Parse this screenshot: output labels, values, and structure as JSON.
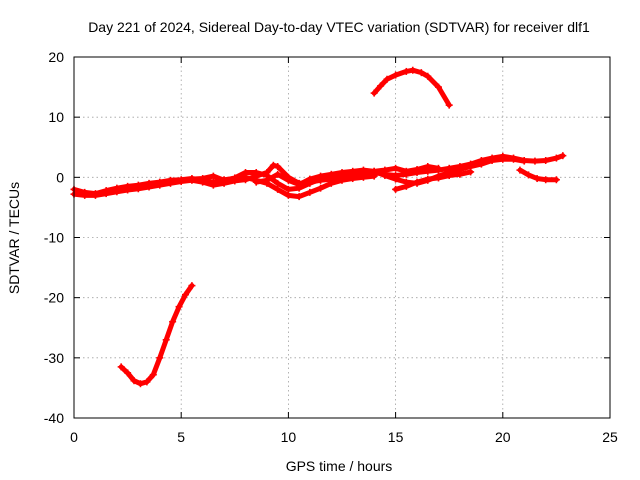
{
  "chart_data": {
    "type": "scatter",
    "title": "Day 221 of 2024, Sidereal Day-to-day VTEC variation (SDTVAR) for receiver dlf1",
    "xlabel": "GPS time / hours",
    "ylabel": "SDTVAR / TECUs",
    "xlim": [
      0,
      25
    ],
    "ylim": [
      -40,
      20
    ],
    "xticks": [
      0,
      5,
      10,
      15,
      20,
      25
    ],
    "xtick_labels": [
      "0",
      "5",
      "10",
      "15",
      "20",
      "25"
    ],
    "yticks": [
      -40,
      -30,
      -20,
      -10,
      0,
      10,
      20
    ],
    "ytick_labels": [
      "-40",
      "-30",
      "-20",
      "-10",
      "0",
      "10",
      "20"
    ],
    "grid": true,
    "legend": "none",
    "marker": "plus",
    "color": "#ff0000",
    "series": [
      {
        "name": "arc-a",
        "points": [
          [
            0.0,
            -2.0
          ],
          [
            0.5,
            -2.5
          ],
          [
            1.0,
            -2.7
          ],
          [
            1.5,
            -2.2
          ],
          [
            2.0,
            -1.8
          ],
          [
            2.5,
            -1.5
          ],
          [
            3.0,
            -1.3
          ],
          [
            3.5,
            -1.0
          ],
          [
            4.0,
            -0.8
          ],
          [
            4.5,
            -0.5
          ],
          [
            5.0,
            -0.4
          ],
          [
            5.5,
            -0.2
          ],
          [
            6.0,
            -0.5
          ],
          [
            6.5,
            -0.8
          ],
          [
            7.0,
            -0.4
          ],
          [
            7.5,
            -0.2
          ],
          [
            8.0,
            0.0
          ],
          [
            8.5,
            -0.5
          ],
          [
            9.0,
            -1.0
          ],
          [
            9.5,
            -2.0
          ],
          [
            10.0,
            -3.0
          ],
          [
            10.5,
            -3.2
          ],
          [
            11.0,
            -2.5
          ],
          [
            11.5,
            -1.8
          ],
          [
            12.0,
            -1.0
          ],
          [
            12.5,
            -0.5
          ],
          [
            13.0,
            -0.2
          ],
          [
            13.5,
            0.0
          ],
          [
            14.0,
            0.2
          ]
        ]
      },
      {
        "name": "arc-b",
        "points": [
          [
            0.0,
            -2.8
          ],
          [
            0.5,
            -3.0
          ],
          [
            1.0,
            -3.0
          ],
          [
            1.5,
            -2.7
          ],
          [
            2.0,
            -2.4
          ],
          [
            2.5,
            -2.1
          ],
          [
            3.0,
            -1.9
          ],
          [
            3.5,
            -1.6
          ],
          [
            4.0,
            -1.3
          ],
          [
            4.5,
            -1.0
          ],
          [
            5.0,
            -0.7
          ],
          [
            5.5,
            -0.5
          ],
          [
            6.0,
            -0.8
          ],
          [
            6.5,
            -1.3
          ],
          [
            7.0,
            -1.0
          ],
          [
            7.5,
            -0.6
          ],
          [
            8.0,
            -0.4
          ],
          [
            8.5,
            0.2
          ],
          [
            9.0,
            0.8
          ],
          [
            9.3,
            2.0
          ],
          [
            9.5,
            1.8
          ],
          [
            10.0,
            0.0
          ],
          [
            10.5,
            -1.0
          ],
          [
            11.0,
            -0.8
          ],
          [
            11.5,
            -0.5
          ],
          [
            12.0,
            -0.3
          ],
          [
            12.5,
            0.0
          ],
          [
            13.0,
            0.3
          ],
          [
            13.5,
            0.6
          ],
          [
            14.0,
            0.8
          ],
          [
            14.5,
            0.5
          ],
          [
            15.0,
            0.3
          ],
          [
            15.5,
            0.5
          ],
          [
            16.0,
            0.8
          ],
          [
            16.5,
            1.0
          ],
          [
            17.0,
            1.2
          ],
          [
            17.5,
            1.5
          ],
          [
            18.0,
            1.8
          ],
          [
            18.5,
            2.2
          ],
          [
            19.0,
            2.8
          ],
          [
            19.5,
            3.2
          ],
          [
            20.0,
            3.5
          ],
          [
            20.5,
            3.2
          ],
          [
            21.0,
            2.8
          ],
          [
            21.5,
            2.7
          ],
          [
            22.0,
            2.8
          ],
          [
            22.5,
            3.2
          ],
          [
            22.8,
            3.6
          ]
        ]
      },
      {
        "name": "arc-c",
        "points": [
          [
            5.5,
            -0.3
          ],
          [
            6.0,
            -0.2
          ],
          [
            6.5,
            0.2
          ],
          [
            7.0,
            -0.5
          ],
          [
            7.5,
            -0.1
          ],
          [
            8.0,
            0.8
          ],
          [
            8.5,
            0.8
          ],
          [
            9.0,
            0.3
          ],
          [
            9.5,
            -1.0
          ],
          [
            10.0,
            -2.0
          ],
          [
            10.5,
            -1.8
          ],
          [
            11.0,
            -1.0
          ],
          [
            11.5,
            -0.3
          ],
          [
            12.0,
            0.2
          ],
          [
            12.5,
            0.5
          ],
          [
            13.0,
            0.7
          ],
          [
            13.5,
            0.8
          ],
          [
            14.0,
            1.0
          ],
          [
            14.5,
            0.3
          ],
          [
            15.0,
            -0.3
          ],
          [
            15.5,
            -0.8
          ],
          [
            16.0,
            -1.0
          ],
          [
            16.5,
            -0.5
          ],
          [
            17.0,
            0.2
          ],
          [
            17.5,
            0.8
          ],
          [
            18.0,
            1.3
          ],
          [
            18.5,
            1.8
          ],
          [
            19.0,
            2.2
          ],
          [
            19.5,
            2.8
          ],
          [
            20.0,
            3.0
          ],
          [
            20.5,
            3.0
          ],
          [
            21.0,
            2.7
          ]
        ]
      },
      {
        "name": "arc-d",
        "points": [
          [
            8.5,
            -0.8
          ],
          [
            9.0,
            -0.5
          ],
          [
            9.5,
            0.5
          ],
          [
            10.0,
            -0.5
          ],
          [
            10.5,
            -1.2
          ],
          [
            11.0,
            -0.3
          ],
          [
            11.5,
            0.2
          ],
          [
            12.0,
            0.5
          ],
          [
            12.5,
            0.8
          ],
          [
            13.0,
            1.0
          ],
          [
            13.5,
            1.2
          ],
          [
            14.0,
            1.0
          ],
          [
            14.5,
            1.2
          ],
          [
            15.0,
            1.5
          ],
          [
            15.5,
            1.0
          ],
          [
            16.0,
            1.3
          ],
          [
            16.5,
            1.8
          ],
          [
            17.0,
            1.5
          ]
        ]
      },
      {
        "name": "arc-e",
        "points": [
          [
            15.0,
            -2.0
          ],
          [
            15.5,
            -1.5
          ],
          [
            16.0,
            -0.8
          ],
          [
            16.5,
            -0.3
          ],
          [
            17.0,
            -0.1
          ],
          [
            17.5,
            0.3
          ],
          [
            18.0,
            0.5
          ],
          [
            18.5,
            0.9
          ]
        ]
      },
      {
        "name": "arc-f",
        "points": [
          [
            20.8,
            1.2
          ],
          [
            21.2,
            0.4
          ],
          [
            21.6,
            -0.2
          ],
          [
            22.0,
            -0.4
          ],
          [
            22.5,
            -0.4
          ]
        ]
      },
      {
        "name": "arc-g",
        "points": [
          [
            14.0,
            14.0
          ],
          [
            14.3,
            15.2
          ],
          [
            14.6,
            16.3
          ],
          [
            15.0,
            17.0
          ],
          [
            15.5,
            17.6
          ],
          [
            15.8,
            17.8
          ],
          [
            16.2,
            17.4
          ],
          [
            16.5,
            16.8
          ],
          [
            17.0,
            15.0
          ],
          [
            17.5,
            12.0
          ]
        ]
      },
      {
        "name": "arc-h",
        "points": [
          [
            2.2,
            -31.5
          ],
          [
            2.5,
            -32.5
          ],
          [
            2.8,
            -33.8
          ],
          [
            3.1,
            -34.3
          ],
          [
            3.4,
            -34.0
          ],
          [
            3.7,
            -32.8
          ],
          [
            4.0,
            -30.0
          ],
          [
            4.3,
            -27.0
          ],
          [
            4.6,
            -24.0
          ],
          [
            4.9,
            -21.5
          ],
          [
            5.2,
            -19.5
          ],
          [
            5.5,
            -18.0
          ]
        ]
      }
    ]
  }
}
